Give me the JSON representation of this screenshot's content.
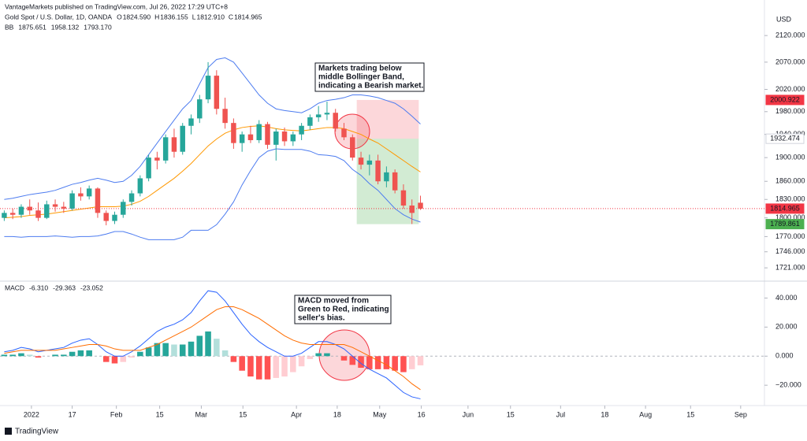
{
  "header": {
    "publisher": "VantageMarkets published on TradingView.com, Jul 26, 2022 17:29 UTC+8",
    "ohlc": [
      {
        "key": "O",
        "value": "1824.590"
      },
      {
        "key": "H",
        "value": "1836.155"
      },
      {
        "key": "L",
        "value": "1812.910"
      },
      {
        "key": "C",
        "value": "1814.965"
      }
    ]
  },
  "footer": {
    "logo": "TradingView"
  },
  "annotations": [
    {
      "lines": [
        "Markets trading below",
        "middle Bollinger Band,",
        "indicating a Bearish market."
      ]
    },
    {
      "lines": [
        "MACD moved from",
        "Green to Red, indicating",
        "seller's bias."
      ]
    }
  ],
  "chart_data": [
    {
      "type": "candlestick",
      "title": "Gold Spot / U.S. Dollar, 1D, OANDA",
      "y_label": "USD",
      "log_scale": true,
      "ylim": [
        1703,
        2158
      ],
      "xlim": [
        -0.5,
        89.5
      ],
      "yticks": [
        {
          "value": 2120,
          "label": "2120.000"
        },
        {
          "value": 2070,
          "label": "2070.000"
        },
        {
          "value": 2020,
          "label": "2020.000"
        },
        {
          "value": 1980,
          "label": "1980.000"
        },
        {
          "value": 1940,
          "label": "1940.000"
        },
        {
          "value": 1900,
          "label": "1900.000"
        },
        {
          "value": 1860,
          "label": "1860.000"
        },
        {
          "value": 1830,
          "label": "1830.000"
        },
        {
          "value": 1800,
          "label": "1800.000"
        },
        {
          "value": 1770,
          "label": "1770.000"
        },
        {
          "value": 1746,
          "label": "1746.000"
        },
        {
          "value": 1721,
          "label": "1721.000"
        }
      ],
      "up_color": "#26a69a",
      "down_color": "#ef5350",
      "open": [
        1800,
        1808,
        1805,
        1818,
        1812,
        1800,
        1822,
        1818,
        1815,
        1840,
        1835,
        1848,
        1808,
        1795,
        1805,
        1826,
        1840,
        1865,
        1900,
        1895,
        1935,
        1910,
        1955,
        1968,
        2002,
        2045,
        1985,
        1960,
        1925,
        1940,
        1930,
        1958,
        1922,
        1945,
        1928,
        1940,
        1955,
        1970,
        1975,
        1978,
        1950,
        1935,
        1900,
        1888,
        1895,
        1860,
        1875,
        1845,
        1820,
        1824.59
      ],
      "high": [
        1812,
        1815,
        1822,
        1830,
        1825,
        1828,
        1830,
        1826,
        1845,
        1850,
        1853,
        1850,
        1812,
        1810,
        1830,
        1845,
        1870,
        1905,
        1910,
        1940,
        1950,
        1960,
        1975,
        2010,
        2070,
        2055,
        2005,
        1968,
        1945,
        1955,
        1965,
        1962,
        1950,
        1952,
        1945,
        1960,
        1975,
        1990,
        1998,
        1985,
        1960,
        1940,
        1910,
        1905,
        1905,
        1885,
        1880,
        1855,
        1830,
        1836.155
      ],
      "low": [
        1795,
        1798,
        1800,
        1805,
        1795,
        1798,
        1810,
        1808,
        1812,
        1828,
        1830,
        1800,
        1788,
        1790,
        1800,
        1820,
        1835,
        1860,
        1880,
        1890,
        1900,
        1905,
        1940,
        1960,
        1995,
        1975,
        1950,
        1915,
        1910,
        1925,
        1925,
        1915,
        1895,
        1920,
        1920,
        1930,
        1948,
        1962,
        1965,
        1945,
        1930,
        1895,
        1880,
        1870,
        1855,
        1850,
        1840,
        1815,
        1790,
        1812.91
      ],
      "close": [
        1808,
        1805,
        1818,
        1812,
        1800,
        1822,
        1818,
        1815,
        1840,
        1835,
        1848,
        1808,
        1795,
        1805,
        1826,
        1840,
        1865,
        1900,
        1895,
        1935,
        1910,
        1955,
        1968,
        2002,
        2045,
        1985,
        1960,
        1925,
        1940,
        1930,
        1958,
        1922,
        1945,
        1928,
        1940,
        1955,
        1970,
        1975,
        1978,
        1950,
        1935,
        1900,
        1888,
        1895,
        1860,
        1875,
        1845,
        1820,
        1808,
        1814.965
      ],
      "indicator": {
        "name": "BB",
        "legend_values": [
          "1875.651",
          "1958.132",
          "1793.170"
        ],
        "series": [
          {
            "color": "#ff9800",
            "values": [
              1800,
              1801,
              1802,
              1804,
              1805,
              1806,
              1808,
              1810,
              1812,
              1814,
              1816,
              1818,
              1818,
              1818,
              1819,
              1822,
              1827,
              1835,
              1845,
              1855,
              1865,
              1877,
              1890,
              1905,
              1920,
              1932,
              1942,
              1948,
              1952,
              1954,
              1955,
              1953,
              1950,
              1948,
              1947,
              1946,
              1948,
              1950,
              1952,
              1952,
              1950,
              1945,
              1940,
              1932,
              1925,
              1915,
              1905,
              1895,
              1885,
              1875.651
            ]
          },
          {
            "color": "#4d7cf0",
            "values": [
              1830,
              1832,
              1835,
              1838,
              1840,
              1842,
              1845,
              1850,
              1855,
              1858,
              1862,
              1865,
              1862,
              1858,
              1860,
              1870,
              1885,
              1905,
              1925,
              1945,
              1965,
              1985,
              2000,
              2030,
              2060,
              2075,
              2078,
              2070,
              2050,
              2030,
              2010,
              1995,
              1985,
              1982,
              1980,
              1978,
              1985,
              1995,
              2000,
              2002,
              2005,
              2010,
              2010,
              2008,
              2005,
              2000,
              1995,
              1985,
              1972,
              1958.132
            ]
          },
          {
            "color": "#4d7cf0",
            "values": [
              1770,
              1770,
              1769,
              1770,
              1770,
              1770,
              1771,
              1770,
              1769,
              1770,
              1770,
              1771,
              1774,
              1778,
              1778,
              1774,
              1769,
              1765,
              1765,
              1765,
              1765,
              1769,
              1780,
              1780,
              1780,
              1789,
              1806,
              1826,
              1854,
              1878,
              1900,
              1911,
              1915,
              1914,
              1914,
              1914,
              1911,
              1905,
              1904,
              1902,
              1895,
              1880,
              1870,
              1856,
              1845,
              1830,
              1815,
              1805,
              1798,
              1793.17
            ]
          }
        ]
      },
      "price_tags": [
        {
          "value": 2000.922,
          "label": "2000.922",
          "color": "#f23645",
          "text_color": "#ffffff"
        },
        {
          "value": 1932.474,
          "label": "1932.474",
          "color": "#ffffff",
          "text_color": "#131722"
        },
        {
          "value": 1814.965,
          "label": "1814.965",
          "color": "#f23645",
          "text_color": "#ffffff"
        },
        {
          "value": 1789.861,
          "label": "1789.861",
          "color": "#4caf50",
          "text_color": "#ffffff"
        }
      ]
    },
    {
      "type": "macd",
      "name": "MACD",
      "legend_values": [
        {
          "label": "-6.310",
          "color": "#f7a9a8"
        },
        {
          "label": "-29.363",
          "color": "#2962ff"
        },
        {
          "label": "-23.052",
          "color": "#ff6d00"
        }
      ],
      "ylim": [
        -34,
        50
      ],
      "xlim": [
        -0.5,
        89.5
      ],
      "yticks": [
        {
          "value": 40,
          "label": "40.000"
        },
        {
          "value": 20,
          "label": "20.000"
        },
        {
          "value": 0,
          "label": "0.000"
        },
        {
          "value": -20,
          "label": "−20.000"
        }
      ],
      "xticks": [
        {
          "value": 3.2,
          "label": "2022"
        },
        {
          "value": 8,
          "label": "17"
        },
        {
          "value": 13.2,
          "label": "Feb"
        },
        {
          "value": 18.3,
          "label": "15"
        },
        {
          "value": 23.2,
          "label": "Mar"
        },
        {
          "value": 28.1,
          "label": "15"
        },
        {
          "value": 34.4,
          "label": "Apr"
        },
        {
          "value": 39.2,
          "label": "18"
        },
        {
          "value": 44.2,
          "label": "May"
        },
        {
          "value": 49.1,
          "label": "16"
        },
        {
          "value": 54.6,
          "label": "Jun"
        },
        {
          "value": 59.6,
          "label": "15"
        },
        {
          "value": 65.5,
          "label": "Jul"
        },
        {
          "value": 70.7,
          "label": "18"
        },
        {
          "value": 75.5,
          "label": "Aug"
        },
        {
          "value": 80.8,
          "label": "15"
        },
        {
          "value": 86.7,
          "label": "Sep"
        }
      ],
      "histogram": {
        "values": [
          1,
          1,
          2,
          1,
          -1,
          0,
          1,
          1,
          3,
          4,
          4,
          0,
          -4,
          -5,
          -4,
          -1,
          3,
          6,
          9,
          9,
          8,
          8,
          10,
          14,
          17,
          12,
          4,
          -4,
          -10,
          -14,
          -16,
          -16,
          -15,
          -14,
          -11,
          -7,
          -2,
          2,
          2,
          0,
          -3,
          -6,
          -8,
          -9,
          -9,
          -9,
          -10,
          -11,
          -9,
          -6.31
        ],
        "colors": {
          "up": "#26a69a",
          "up_fade": "#b2dfdb",
          "down": "#ff5252",
          "down_fade": "#ffcdd2"
        }
      },
      "series": [
        {
          "color": "#2962ff",
          "values": [
            3,
            4,
            6,
            5,
            3,
            4,
            5,
            6,
            9,
            11,
            12,
            8,
            3,
            0,
            0,
            3,
            7,
            12,
            17,
            20,
            22,
            25,
            30,
            38,
            45,
            44,
            38,
            30,
            22,
            15,
            10,
            6,
            3,
            0,
            0,
            2,
            6,
            10,
            10,
            8,
            5,
            0,
            -5,
            -9,
            -12,
            -15,
            -20,
            -25,
            -28,
            -29.363
          ]
        },
        {
          "color": "#ff6d00",
          "values": [
            2,
            3,
            4,
            4,
            4,
            4,
            4,
            5,
            6,
            7,
            8,
            8,
            7,
            5,
            4,
            4,
            4,
            6,
            8,
            11,
            14,
            17,
            20,
            24,
            28,
            32,
            34,
            34,
            32,
            29,
            26,
            22,
            18,
            14,
            11,
            9,
            8,
            8,
            8,
            8,
            8,
            6,
            3,
            0,
            -3,
            -6,
            -10,
            -14,
            -19,
            -23.052
          ]
        }
      ]
    }
  ]
}
